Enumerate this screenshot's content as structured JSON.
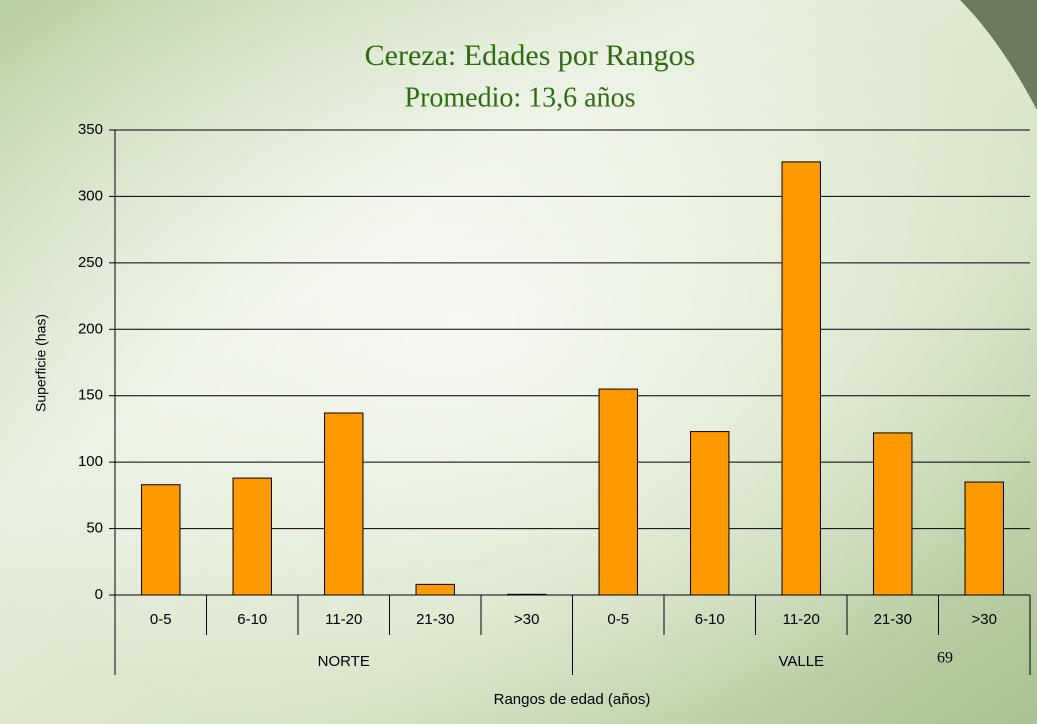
{
  "chart_data": {
    "type": "bar",
    "title": "Cereza: Edades por Rangos",
    "subtitle": "Promedio: 13,6 años",
    "y_label": "Superficie (has)",
    "x_label": "Rangos de edad (años)",
    "annotation": "69",
    "categories": [
      "0-5",
      "6-10",
      "11-20",
      "21-30",
      ">30",
      "0-5",
      "6-10",
      "11-20",
      "21-30",
      ">30"
    ],
    "groups": [
      "NORTE",
      "VALLE"
    ],
    "values": [
      83,
      88,
      137,
      8,
      0.5,
      155,
      123,
      326,
      122,
      85
    ],
    "color": "#ff9900",
    "ylim": [
      0,
      350
    ],
    "yticks": [
      0,
      50,
      100,
      150,
      200,
      250,
      300,
      350
    ],
    "grid": true
  }
}
